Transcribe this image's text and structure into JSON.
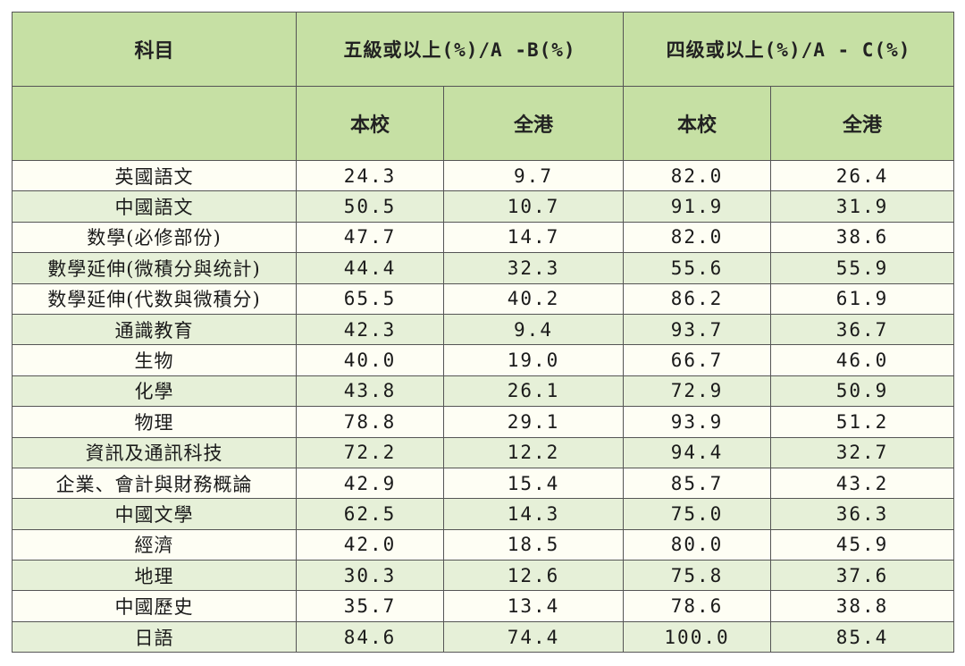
{
  "table": {
    "header": {
      "subject": "科目",
      "group1": "五級或以上(%)/A -B(%)",
      "group2": "四级或以上(%)/A - C(%)",
      "sub_school": "本校",
      "sub_hk": "全港"
    },
    "rows": [
      {
        "subject": "英國語文",
        "g5_school": "24.3",
        "g5_hk": "9.7",
        "g4_school": "82.0",
        "g4_hk": "26.4"
      },
      {
        "subject": "中國語文",
        "g5_school": "50.5",
        "g5_hk": "10.7",
        "g4_school": "91.9",
        "g4_hk": "31.9"
      },
      {
        "subject": "数學(必修部份)",
        "g5_school": "47.7",
        "g5_hk": "14.7",
        "g4_school": "82.0",
        "g4_hk": "38.6"
      },
      {
        "subject": "數學延伸(微積分與统計)",
        "g5_school": "44.4",
        "g5_hk": "32.3",
        "g4_school": "55.6",
        "g4_hk": "55.9"
      },
      {
        "subject": "数學延伸(代数與微積分)",
        "g5_school": "65.5",
        "g5_hk": "40.2",
        "g4_school": "86.2",
        "g4_hk": "61.9"
      },
      {
        "subject": "通識教育",
        "g5_school": "42.3",
        "g5_hk": "9.4",
        "g4_school": "93.7",
        "g4_hk": "36.7"
      },
      {
        "subject": "生物",
        "g5_school": "40.0",
        "g5_hk": "19.0",
        "g4_school": "66.7",
        "g4_hk": "46.0"
      },
      {
        "subject": "化學",
        "g5_school": "43.8",
        "g5_hk": "26.1",
        "g4_school": "72.9",
        "g4_hk": "50.9"
      },
      {
        "subject": "物理",
        "g5_school": "78.8",
        "g5_hk": "29.1",
        "g4_school": "93.9",
        "g4_hk": "51.2"
      },
      {
        "subject": "資訊及通訊科技",
        "g5_school": "72.2",
        "g5_hk": "12.2",
        "g4_school": "94.4",
        "g4_hk": "32.7"
      },
      {
        "subject": "企業、會計與財務概論",
        "g5_school": "42.9",
        "g5_hk": "15.4",
        "g4_school": "85.7",
        "g4_hk": "43.2"
      },
      {
        "subject": "中國文學",
        "g5_school": "62.5",
        "g5_hk": "14.3",
        "g4_school": "75.0",
        "g4_hk": "36.3"
      },
      {
        "subject": "經濟",
        "g5_school": "42.0",
        "g5_hk": "18.5",
        "g4_school": "80.0",
        "g4_hk": "45.9"
      },
      {
        "subject": "地理",
        "g5_school": "30.3",
        "g5_hk": "12.6",
        "g4_school": "75.8",
        "g4_hk": "37.6"
      },
      {
        "subject": "中國歷史",
        "g5_school": "35.7",
        "g5_hk": "13.4",
        "g4_school": "78.6",
        "g4_hk": "38.8"
      },
      {
        "subject": "日語",
        "g5_school": "84.6",
        "g5_hk": "74.4",
        "g4_school": "100.0",
        "g4_hk": "85.4"
      }
    ],
    "colors": {
      "header_bg": "#c6e0a4",
      "row_light": "#fefef4",
      "row_green": "#e6f0d8",
      "border": "#555555"
    }
  }
}
